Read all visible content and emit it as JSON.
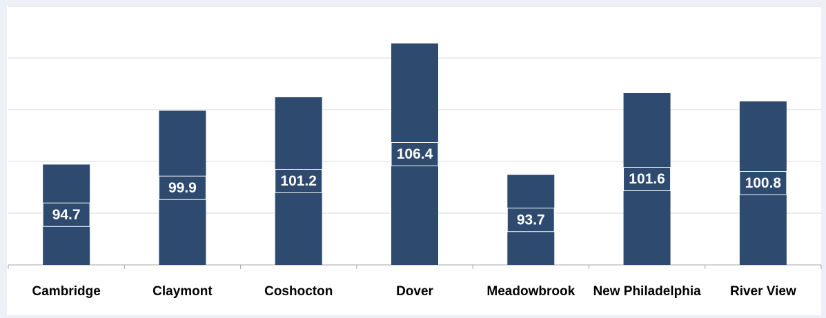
{
  "chart_data": {
    "type": "bar",
    "categories": [
      "Cambridge",
      "Claymont",
      "Coshocton",
      "Dover",
      "Meadowbrook",
      "New Philadelphia",
      "River View"
    ],
    "values": [
      94.7,
      99.9,
      101.2,
      106.4,
      93.7,
      101.6,
      100.8
    ],
    "color": "#2e4a6f",
    "ylim": [
      85,
      110
    ],
    "yticks": [
      85,
      90,
      95,
      100,
      105,
      110
    ],
    "grid": true
  }
}
